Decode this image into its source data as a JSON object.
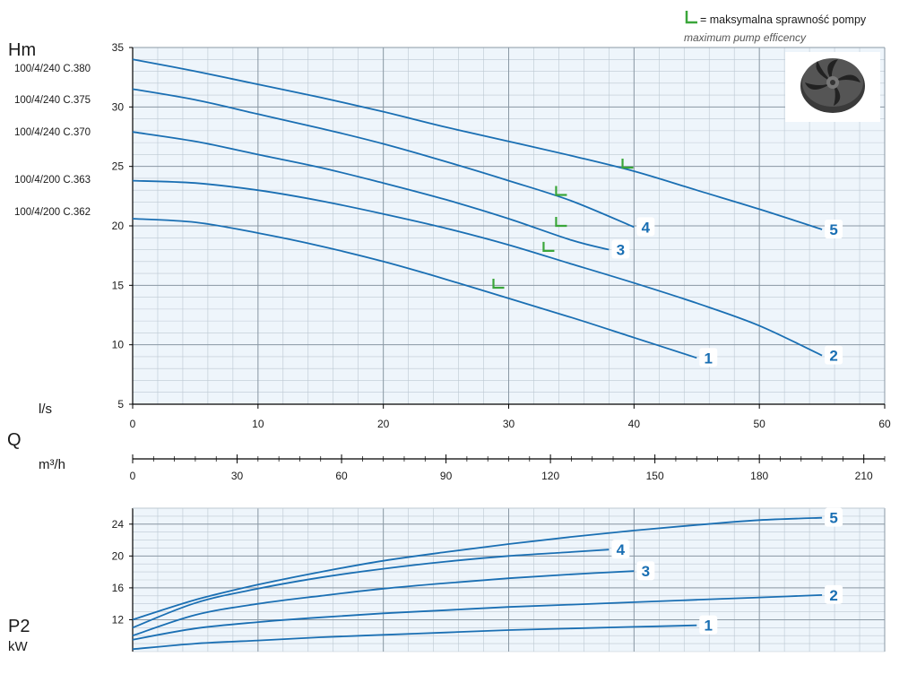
{
  "legend": {
    "line1": "= maksymalna sprawność pompy",
    "line2": "maximum pump efficency",
    "color": "#3aa63a"
  },
  "colors": {
    "curve": "#1a6fb3",
    "grid": "#bcc8d2",
    "plot_bg": "#eef5fb",
    "axis": "#000000"
  },
  "models": [
    "100/4/240 C.380",
    "100/4/240 C.375",
    "100/4/240 C.370",
    "100/4/200 C.363",
    "100/4/200 C.362"
  ],
  "icon": "pump-impeller-icon",
  "chart_data": [
    {
      "type": "line",
      "name": "head",
      "ylabel": "Hm",
      "xlabel": "l/s",
      "xlim": [
        0,
        60
      ],
      "ylim": [
        5,
        35
      ],
      "xticks": [
        0,
        10,
        20,
        30,
        40,
        50,
        60
      ],
      "yticks": [
        5,
        10,
        15,
        20,
        25,
        30,
        35
      ],
      "grid": true,
      "series": [
        {
          "name": "1",
          "x": [
            0,
            5,
            10,
            15,
            20,
            25,
            30,
            35,
            40,
            45
          ],
          "y": [
            20.6,
            20.3,
            19.4,
            18.3,
            17.0,
            15.5,
            13.9,
            12.3,
            10.6,
            8.9
          ]
        },
        {
          "name": "2",
          "x": [
            0,
            5,
            10,
            15,
            20,
            25,
            30,
            35,
            40,
            45,
            50,
            55
          ],
          "y": [
            23.8,
            23.6,
            23.0,
            22.1,
            21.0,
            19.8,
            18.4,
            16.8,
            15.2,
            13.5,
            11.6,
            9.1
          ]
        },
        {
          "name": "3",
          "x": [
            0,
            5,
            10,
            15,
            20,
            25,
            30,
            35,
            38
          ],
          "y": [
            27.9,
            27.1,
            26.0,
            24.9,
            23.6,
            22.2,
            20.6,
            18.8,
            18.0
          ]
        },
        {
          "name": "4",
          "x": [
            0,
            5,
            10,
            15,
            20,
            25,
            30,
            35,
            40
          ],
          "y": [
            31.5,
            30.6,
            29.4,
            28.2,
            26.9,
            25.4,
            23.8,
            22.1,
            19.9
          ]
        },
        {
          "name": "5",
          "x": [
            0,
            5,
            10,
            15,
            20,
            25,
            30,
            35,
            40,
            45,
            50,
            55
          ],
          "y": [
            34.0,
            33.0,
            31.9,
            30.8,
            29.6,
            28.3,
            27.1,
            25.9,
            24.6,
            23.0,
            21.4,
            19.7
          ]
        }
      ],
      "efficiency_markers": [
        {
          "series": "1",
          "x": 29.0,
          "y": 14.8
        },
        {
          "series": "2",
          "x": 33.0,
          "y": 17.9
        },
        {
          "series": "3",
          "x": 34.0,
          "y": 20.0
        },
        {
          "series": "4",
          "x": 34.0,
          "y": 22.6
        },
        {
          "series": "5",
          "x": 39.3,
          "y": 24.9
        }
      ]
    },
    {
      "type": "axis",
      "name": "flow-m3h",
      "label_symbol": "Q",
      "xlabel": "m³/h",
      "xlim": [
        0,
        216
      ],
      "xticks": [
        0,
        30,
        60,
        90,
        120,
        150,
        180,
        210
      ]
    },
    {
      "type": "line",
      "name": "power",
      "ylabel": "P2",
      "yunit": "kW",
      "xlim": [
        0,
        60
      ],
      "ylim": [
        8,
        26
      ],
      "yticks": [
        12,
        16,
        20,
        24
      ],
      "grid": true,
      "series": [
        {
          "name": "1",
          "x": [
            0,
            5,
            10,
            15,
            20,
            25,
            30,
            35,
            40,
            45
          ],
          "y": [
            8.3,
            9.0,
            9.4,
            9.8,
            10.1,
            10.4,
            10.7,
            10.9,
            11.1,
            11.3
          ]
        },
        {
          "name": "2",
          "x": [
            0,
            5,
            10,
            15,
            20,
            25,
            30,
            35,
            40,
            45,
            50,
            55
          ],
          "y": [
            9.5,
            10.9,
            11.7,
            12.3,
            12.8,
            13.2,
            13.6,
            13.9,
            14.2,
            14.5,
            14.8,
            15.1
          ]
        },
        {
          "name": "3",
          "x": [
            0,
            5,
            10,
            15,
            20,
            25,
            30,
            35,
            40
          ],
          "y": [
            10.0,
            12.6,
            14.0,
            15.0,
            15.9,
            16.6,
            17.2,
            17.7,
            18.1
          ]
        },
        {
          "name": "4",
          "x": [
            0,
            5,
            10,
            15,
            20,
            25,
            30,
            35,
            38
          ],
          "y": [
            11.0,
            14.1,
            15.9,
            17.3,
            18.4,
            19.3,
            20.0,
            20.5,
            20.8
          ]
        },
        {
          "name": "5",
          "x": [
            0,
            5,
            10,
            15,
            20,
            25,
            30,
            35,
            40,
            45,
            50,
            55
          ],
          "y": [
            12.0,
            14.5,
            16.4,
            18.0,
            19.4,
            20.5,
            21.5,
            22.4,
            23.2,
            23.9,
            24.5,
            24.8
          ]
        }
      ]
    }
  ]
}
